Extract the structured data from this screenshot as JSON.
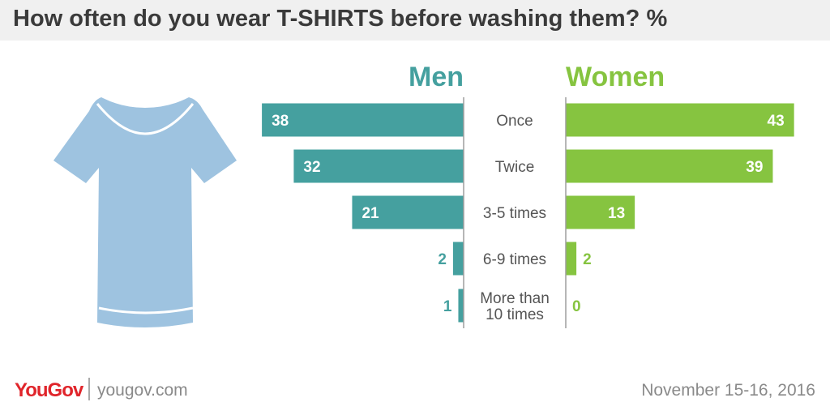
{
  "title": "How often do you wear T-SHIRTS before washing them? %",
  "footer": {
    "brand": "YouGov",
    "url": "yougov.com",
    "date": "November 15-16, 2016"
  },
  "icons": {
    "illustration": "tshirt-icon"
  },
  "colors": {
    "men": "#45a09f",
    "women": "#86c440",
    "tshirt": "#9ec3e0",
    "brand": "#e0252b"
  },
  "chart_data": {
    "type": "bar",
    "orientation": "horizontal-diverging",
    "categories": [
      "Once",
      "Twice",
      "3-5 times",
      "6-9 times",
      [
        "More than",
        "10 times"
      ]
    ],
    "series": [
      {
        "name": "Men",
        "values": [
          38,
          32,
          21,
          2,
          1
        ]
      },
      {
        "name": "Women",
        "values": [
          43,
          39,
          13,
          2,
          0
        ]
      }
    ],
    "unit": "%"
  }
}
